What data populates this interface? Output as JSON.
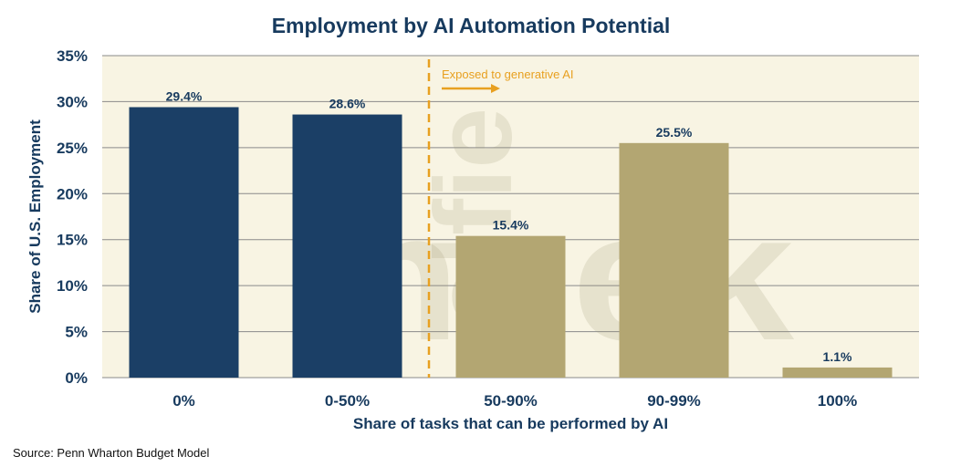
{
  "chart_data": {
    "type": "bar",
    "title": "Employment by AI Automation Potential",
    "xlabel": "Share of tasks that can be performed by AI",
    "ylabel": "Share of U.S. Employment",
    "categories": [
      "0%",
      "0-50%",
      "50-90%",
      "90-99%",
      "100%"
    ],
    "values": [
      29.4,
      28.6,
      15.4,
      25.5,
      1.1
    ],
    "data_labels": [
      "29.4%",
      "28.6%",
      "15.4%",
      "25.5%",
      "1.1%"
    ],
    "ylim": [
      0,
      35
    ],
    "yticks": [
      0,
      5,
      10,
      15,
      20,
      25,
      30,
      35
    ],
    "ytick_labels": [
      "0%",
      "5%",
      "10%",
      "15%",
      "20%",
      "25%",
      "30%",
      "35%"
    ],
    "grid": true,
    "annotation": "Exposed to generative AI",
    "colors": {
      "not_exposed": "#1b3f66",
      "exposed": "#b3a672",
      "plot_background": "#f8f4e3",
      "annotation": "#e8a020",
      "text": "#173a5e"
    },
    "exposed_from_index": 2
  },
  "watermark": [
    "alfie",
    "meek"
  ],
  "source": "Source: Penn Wharton Budget Model"
}
